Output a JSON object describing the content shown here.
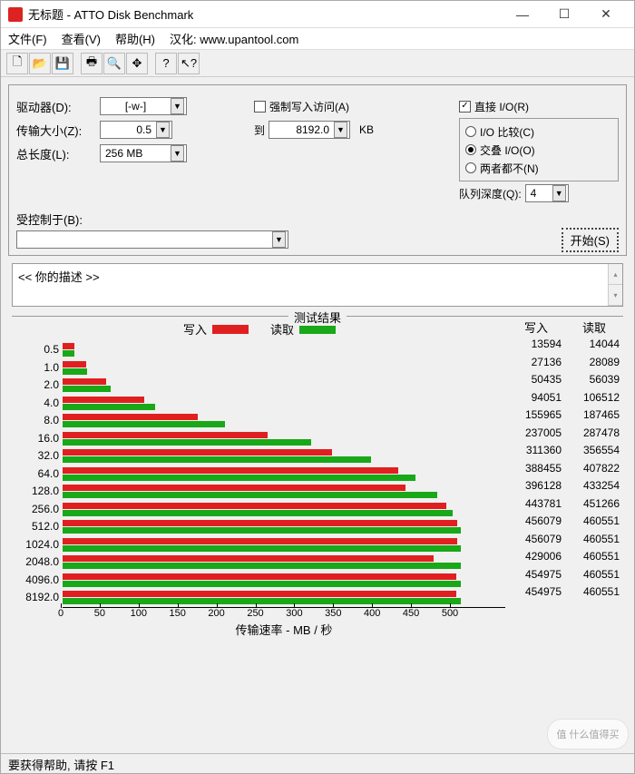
{
  "window": {
    "title": "无标题 - ATTO Disk Benchmark"
  },
  "menu": {
    "file": "文件(F)",
    "view": "查看(V)",
    "help": "帮助(H)",
    "credits": "汉化: www.upantool.com"
  },
  "toolbar_icons": [
    "new",
    "open",
    "save",
    "print",
    "preview",
    "move",
    "help",
    "pointer"
  ],
  "config": {
    "drive_label": "驱动器(D):",
    "drive_value": "[-w-]",
    "size_label": "传输大小(Z):",
    "size_from": "0.5",
    "size_to_label": "到",
    "size_to": "8192.0",
    "size_unit": "KB",
    "length_label": "总长度(L):",
    "length_value": "256 MB",
    "force_write_label": "强制写入访问(A)",
    "force_write_checked": false,
    "direct_io_label": "直接 I/O(R)",
    "direct_io_checked": true,
    "io_compare_label": "I/O 比较(C)",
    "io_overlap_label": "交叠 I/O(O)",
    "io_neither_label": "两者都不(N)",
    "io_selected": "overlap",
    "queue_label": "队列深度(Q):",
    "queue_value": "4",
    "controlled_label": "受控制于(B):",
    "start_label": "开始(S)"
  },
  "description": {
    "text": "<<  你的描述    >>"
  },
  "chart": {
    "title": "测试结果",
    "legend_write": "写入",
    "legend_read": "读取",
    "write_color": "#e02020",
    "read_color": "#18a818",
    "y_labels": [
      "0.5",
      "1.0",
      "2.0",
      "4.0",
      "8.0",
      "16.0",
      "32.0",
      "64.0",
      "128.0",
      "256.0",
      "512.0",
      "1024.0",
      "2048.0",
      "4096.0",
      "8192.0"
    ],
    "x_ticks": [
      0,
      50,
      100,
      150,
      200,
      250,
      300,
      350,
      400,
      450,
      500
    ],
    "x_max": 500,
    "x_axis_label": "传输速率 - MB / 秒",
    "values_header_write": "写入",
    "values_header_read": "读取",
    "data": [
      {
        "write_mb": 13.3,
        "read_mb": 13.7,
        "write": "13594",
        "read": "14044"
      },
      {
        "write_mb": 26.5,
        "read_mb": 27.4,
        "write": "27136",
        "read": "28089"
      },
      {
        "write_mb": 49.3,
        "read_mb": 54.7,
        "write": "50435",
        "read": "56039"
      },
      {
        "write_mb": 91.8,
        "read_mb": 104.0,
        "write": "94051",
        "read": "106512"
      },
      {
        "write_mb": 152.3,
        "read_mb": 183.1,
        "write": "155965",
        "read": "187465"
      },
      {
        "write_mb": 231.5,
        "read_mb": 280.7,
        "write": "237005",
        "read": "287478"
      },
      {
        "write_mb": 304.1,
        "read_mb": 348.2,
        "write": "311360",
        "read": "356554"
      },
      {
        "write_mb": 379.4,
        "read_mb": 398.3,
        "write": "388455",
        "read": "407822"
      },
      {
        "write_mb": 386.8,
        "read_mb": 423.1,
        "write": "396128",
        "read": "433254"
      },
      {
        "write_mb": 433.4,
        "read_mb": 440.7,
        "write": "443781",
        "read": "451266"
      },
      {
        "write_mb": 445.4,
        "read_mb": 449.8,
        "write": "456079",
        "read": "460551"
      },
      {
        "write_mb": 445.4,
        "read_mb": 449.8,
        "write": "456079",
        "read": "460551"
      },
      {
        "write_mb": 419.0,
        "read_mb": 449.8,
        "write": "429006",
        "read": "460551"
      },
      {
        "write_mb": 444.3,
        "read_mb": 449.8,
        "write": "454975",
        "read": "460551"
      },
      {
        "write_mb": 444.3,
        "read_mb": 449.8,
        "write": "454975",
        "read": "460551"
      }
    ]
  },
  "status": {
    "text": "要获得帮助, 请按 F1"
  },
  "watermark": "值 什么值得买"
}
